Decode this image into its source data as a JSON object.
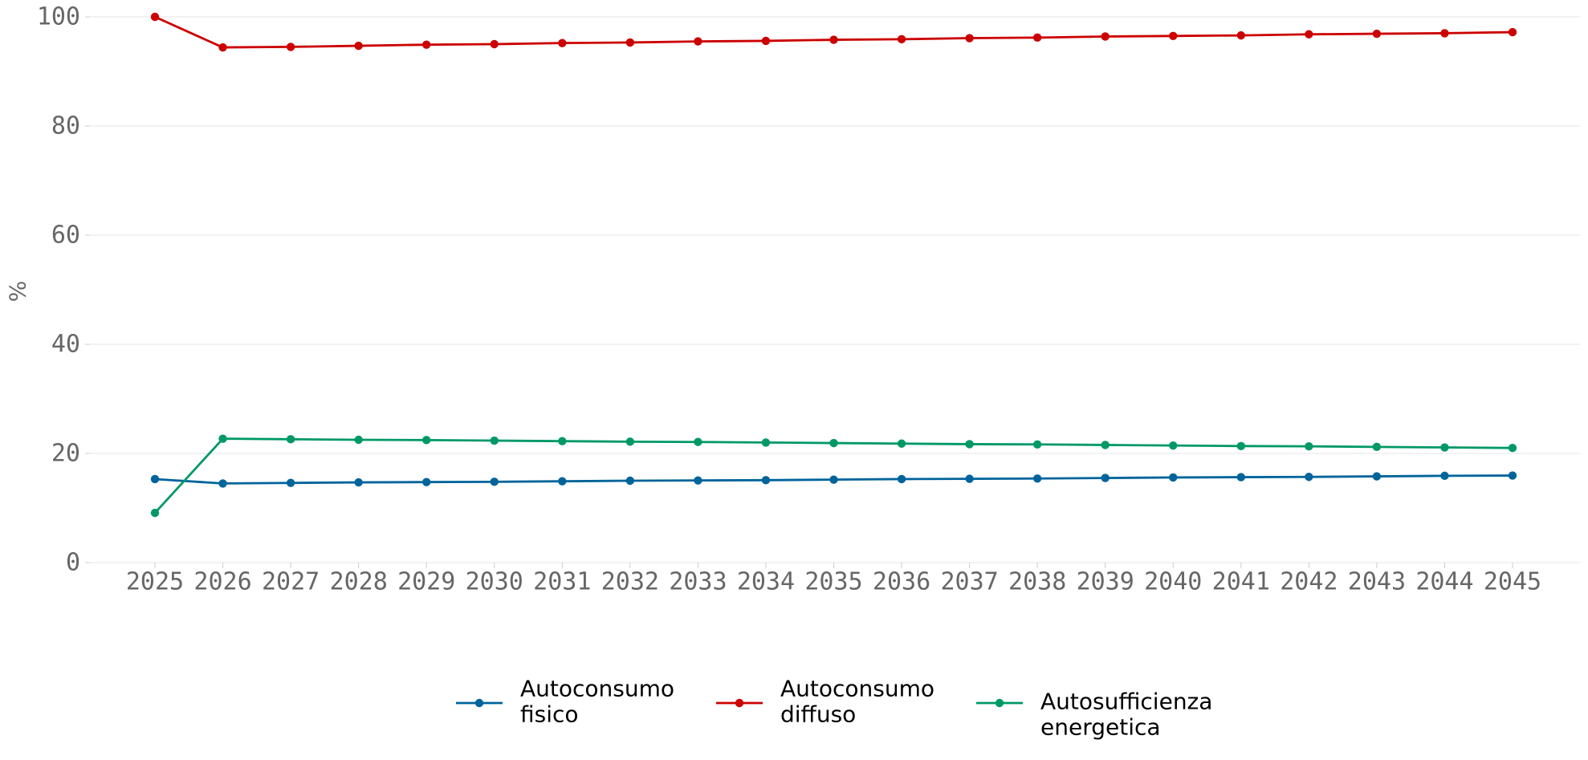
{
  "chart_data": {
    "type": "line",
    "title": "",
    "xlabel": "",
    "ylabel": "%",
    "ylim": [
      0,
      100
    ],
    "yticks": [
      "0",
      "20",
      "40",
      "60",
      "80",
      "100"
    ],
    "grid": "horizontal",
    "legend_position": "bottom-center",
    "x": [
      "2025",
      "2026",
      "2027",
      "2028",
      "2029",
      "2030",
      "2031",
      "2032",
      "2033",
      "2034",
      "2035",
      "2036",
      "2037",
      "2038",
      "2039",
      "2040",
      "2041",
      "2042",
      "2043",
      "2044",
      "2045"
    ],
    "series": [
      {
        "name": "Autoconsumo fisico",
        "legend_lines": [
          "Autoconsumo",
          "fisico"
        ],
        "color": "#00649b",
        "marker": "circle",
        "values": [
          15.3,
          14.5,
          14.6,
          14.7,
          14.75,
          14.8,
          14.9,
          15.0,
          15.05,
          15.1,
          15.2,
          15.3,
          15.35,
          15.4,
          15.5,
          15.6,
          15.65,
          15.7,
          15.8,
          15.9,
          15.95
        ]
      },
      {
        "name": "Autoconsumo diffuso",
        "legend_lines": [
          "Autoconsumo",
          "diffuso"
        ],
        "color": "#cc0000",
        "marker": "circle",
        "values": [
          100.0,
          94.4,
          94.5,
          94.7,
          94.9,
          95.0,
          95.2,
          95.3,
          95.5,
          95.6,
          95.8,
          95.9,
          96.1,
          96.2,
          96.4,
          96.5,
          96.6,
          96.8,
          96.9,
          97.0,
          97.2
        ]
      },
      {
        "name": "Autosufficienza energetica",
        "legend_lines": [
          "Autosufficienza",
          "energetica"
        ],
        "color": "#009966",
        "marker": "circle",
        "values": [
          9.1,
          22.7,
          22.6,
          22.5,
          22.45,
          22.35,
          22.25,
          22.15,
          22.1,
          22.0,
          21.9,
          21.8,
          21.7,
          21.65,
          21.55,
          21.45,
          21.35,
          21.3,
          21.2,
          21.1,
          21.0
        ]
      }
    ]
  }
}
